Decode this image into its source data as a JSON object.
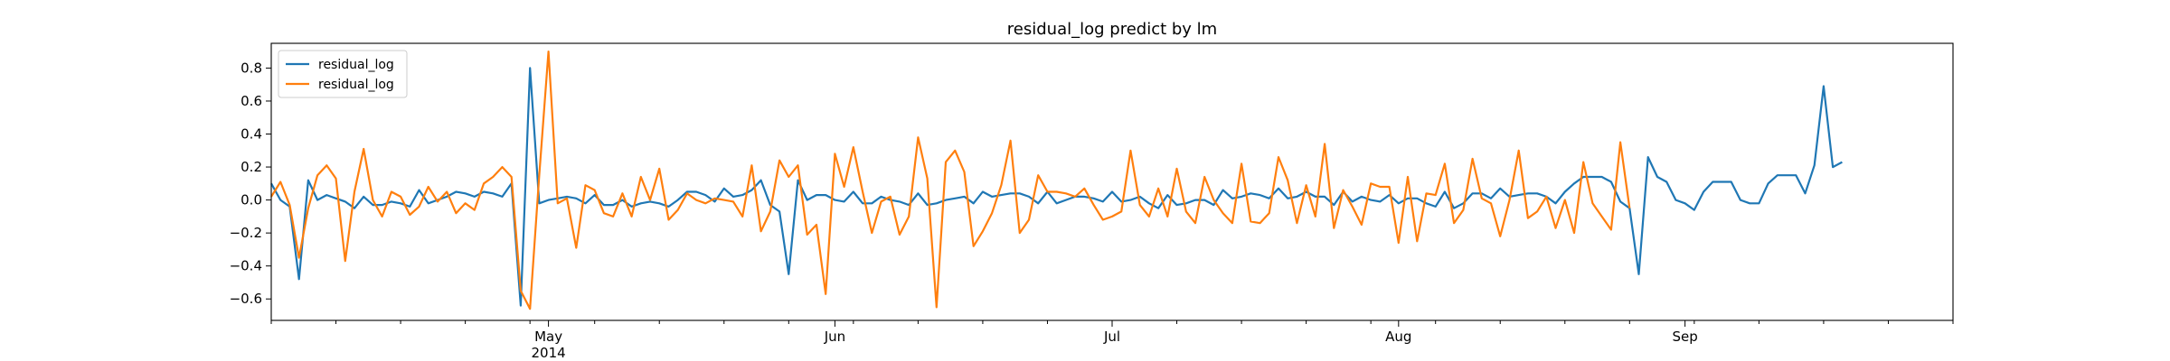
{
  "chart_data": {
    "type": "line",
    "title": "residual_log predict by lm",
    "xlabel": "",
    "ylabel": "",
    "x_start": "2014-04-01",
    "x_end": "2014-09-30",
    "xlim": [
      "2014-04-01",
      "2014-09-30"
    ],
    "ylim": [
      -0.73,
      0.95
    ],
    "yticks": [
      -0.6,
      -0.4,
      -0.2,
      0.0,
      0.2,
      0.4,
      0.6,
      0.8
    ],
    "ytick_labels": [
      "−0.6",
      "−0.4",
      "−0.2",
      "0.0",
      "0.2",
      "0.4",
      "0.6",
      "0.8"
    ],
    "xticks_major": [
      {
        "date": "2014-05-01",
        "label": "May",
        "sublabel": "2014"
      },
      {
        "date": "2014-06-01",
        "label": "Jun",
        "sublabel": ""
      },
      {
        "date": "2014-07-01",
        "label": "Jul",
        "sublabel": ""
      },
      {
        "date": "2014-08-01",
        "label": "Aug",
        "sublabel": ""
      },
      {
        "date": "2014-09-01",
        "label": "Sep",
        "sublabel": ""
      }
    ],
    "minor_tick_interval_days": 7,
    "grid": false,
    "legend_position": "top-left",
    "series": [
      {
        "name": "residual_log",
        "color": "#1f77b4",
        "x_start": "2014-04-01",
        "step_days": 1,
        "values": [
          0.1,
          0.0,
          -0.04,
          -0.48,
          0.12,
          0.0,
          0.03,
          0.01,
          -0.01,
          -0.05,
          0.02,
          -0.03,
          -0.03,
          -0.01,
          -0.02,
          -0.04,
          0.06,
          -0.02,
          0.0,
          0.02,
          0.05,
          0.04,
          0.02,
          0.05,
          0.04,
          0.02,
          0.1,
          -0.64,
          0.8,
          -0.02,
          0.0,
          0.01,
          0.02,
          0.01,
          -0.02,
          0.03,
          -0.03,
          -0.03,
          0.0,
          -0.04,
          -0.02,
          -0.01,
          -0.02,
          -0.04,
          0.0,
          0.05,
          0.05,
          0.03,
          -0.01,
          0.07,
          0.02,
          0.03,
          0.06,
          0.12,
          -0.03,
          -0.07,
          -0.45,
          0.12,
          0.0,
          0.03,
          0.03,
          0.0,
          -0.01,
          0.05,
          -0.02,
          -0.02,
          0.02,
          0.0,
          -0.01,
          -0.03,
          0.04,
          -0.03,
          -0.02,
          0.0,
          0.01,
          0.02,
          -0.02,
          0.05,
          0.02,
          0.03,
          0.04,
          0.04,
          0.02,
          -0.02,
          0.05,
          -0.02,
          0.0,
          0.02,
          0.02,
          0.01,
          -0.01,
          0.05,
          -0.01,
          0.0,
          0.02,
          -0.02,
          -0.05,
          0.03,
          -0.03,
          -0.02,
          0.0,
          0.0,
          -0.03,
          0.06,
          0.01,
          0.02,
          0.04,
          0.03,
          0.01,
          0.07,
          0.01,
          0.02,
          0.05,
          0.02,
          0.02,
          -0.03,
          0.05,
          -0.01,
          0.02,
          0.0,
          -0.01,
          0.03,
          -0.02,
          0.01,
          0.01,
          -0.02,
          -0.04,
          0.05,
          -0.05,
          -0.02,
          0.04,
          0.04,
          0.01,
          0.07,
          0.02,
          0.03,
          0.04,
          0.04,
          0.02,
          -0.02,
          0.05,
          0.1,
          0.14,
          0.14,
          0.14,
          0.11,
          -0.01,
          -0.05,
          -0.45,
          0.26,
          0.14,
          0.11,
          0.0,
          -0.02,
          -0.06,
          0.05,
          0.11,
          0.11,
          0.11,
          0.0,
          -0.02,
          -0.02,
          0.1,
          0.15,
          0.15,
          0.15,
          0.04,
          0.21,
          0.69,
          0.2,
          0.23
        ]
      },
      {
        "name": "residual_log",
        "color": "#ff7f0e",
        "x_start": "2014-04-01",
        "step_days": 1,
        "values": [
          0.02,
          0.11,
          -0.03,
          -0.35,
          -0.05,
          0.15,
          0.21,
          0.13,
          -0.37,
          0.05,
          0.31,
          0.0,
          -0.1,
          0.05,
          0.02,
          -0.09,
          -0.04,
          0.08,
          -0.01,
          0.05,
          -0.08,
          -0.02,
          -0.06,
          0.1,
          0.14,
          0.2,
          0.14,
          -0.55,
          -0.66,
          0.15,
          0.9,
          -0.02,
          0.01,
          -0.29,
          0.09,
          0.06,
          -0.08,
          -0.1,
          0.04,
          -0.1,
          0.14,
          0.0,
          0.19,
          -0.12,
          -0.06,
          0.04,
          0.0,
          -0.02,
          0.01,
          0.0,
          -0.01,
          -0.1,
          0.21,
          -0.19,
          -0.07,
          0.24,
          0.14,
          0.21,
          -0.21,
          -0.15,
          -0.57,
          0.28,
          0.08,
          0.32,
          0.05,
          -0.2,
          -0.01,
          0.02,
          -0.21,
          -0.1,
          0.38,
          0.13,
          -0.65,
          0.23,
          0.3,
          0.17,
          -0.28,
          -0.19,
          -0.08,
          0.09,
          0.36,
          -0.2,
          -0.12,
          0.15,
          0.05,
          0.05,
          0.04,
          0.02,
          0.07,
          -0.03,
          -0.12,
          -0.1,
          -0.07,
          0.3,
          -0.03,
          -0.1,
          0.07,
          -0.1,
          0.19,
          -0.07,
          -0.14,
          0.14,
          0.0,
          -0.08,
          -0.14,
          0.22,
          -0.13,
          -0.14,
          -0.08,
          0.26,
          0.12,
          -0.14,
          0.09,
          -0.1,
          0.34,
          -0.17,
          0.06,
          -0.04,
          -0.15,
          0.1,
          0.08,
          0.08,
          -0.26,
          0.14,
          -0.25,
          0.04,
          0.03,
          0.22,
          -0.14,
          -0.06,
          0.25,
          0.01,
          -0.02,
          -0.22,
          0.0,
          0.3,
          -0.11,
          -0.07,
          0.02,
          -0.17,
          0.0,
          -0.2,
          0.23,
          -0.02,
          -0.1,
          -0.18,
          0.35,
          -0.05
        ]
      }
    ]
  }
}
